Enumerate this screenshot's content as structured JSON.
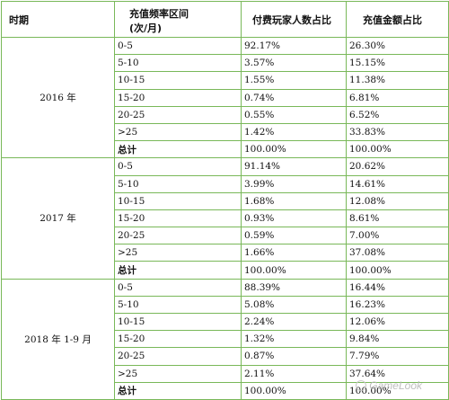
{
  "headers": [
    "时期",
    "充值频率区间",
    "(次/月)",
    "付费玩家人数占比",
    "充值金额占比"
  ],
  "watermark": "GameLook",
  "periods": [
    {
      "label": "2016 年",
      "rows": [
        {
          "freq": "0-5",
          "players": "92.17%",
          "amount": "26.30%"
        },
        {
          "freq": "5-10",
          "players": "3.57%",
          "amount": "15.15%"
        },
        {
          "freq": "10-15",
          "players": "1.55%",
          "amount": "11.38%"
        },
        {
          "freq": "15-20",
          "players": "0.74%",
          "amount": "6.81%"
        },
        {
          "freq": "20-25",
          "players": "0.55%",
          "amount": "6.52%"
        },
        {
          "freq": ">25",
          "players": "1.42%",
          "amount": "33.83%"
        }
      ],
      "total": {
        "label": "总计",
        "players": "100.00%",
        "amount": "100.00%"
      }
    },
    {
      "label": "2017 年",
      "rows": [
        {
          "freq": "0-5",
          "players": "91.14%",
          "amount": "20.62%"
        },
        {
          "freq": "5-10",
          "players": "3.99%",
          "amount": "14.61%"
        },
        {
          "freq": "10-15",
          "players": "1.68%",
          "amount": "12.08%"
        },
        {
          "freq": "15-20",
          "players": "0.93%",
          "amount": "8.61%"
        },
        {
          "freq": "20-25",
          "players": "0.59%",
          "amount": "7.00%"
        },
        {
          "freq": ">25",
          "players": "1.66%",
          "amount": "37.08%"
        }
      ],
      "total": {
        "label": "总计",
        "players": "100.00%",
        "amount": "100.00%"
      }
    },
    {
      "label": "2018 年  1-9 月",
      "rows": [
        {
          "freq": "0-5",
          "players": "88.39%",
          "amount": "16.44%"
        },
        {
          "freq": "5-10",
          "players": "5.08%",
          "amount": "16.23%"
        },
        {
          "freq": "10-15",
          "players": "2.24%",
          "amount": "12.06%"
        },
        {
          "freq": "15-20",
          "players": "1.32%",
          "amount": "9.84%"
        },
        {
          "freq": "20-25",
          "players": "0.87%",
          "amount": "7.79%"
        },
        {
          "freq": ">25",
          "players": "2.11%",
          "amount": "37.64%"
        }
      ],
      "total": {
        "label": "总计",
        "players": "100.00%",
        "amount": "100.00%"
      }
    }
  ]
}
